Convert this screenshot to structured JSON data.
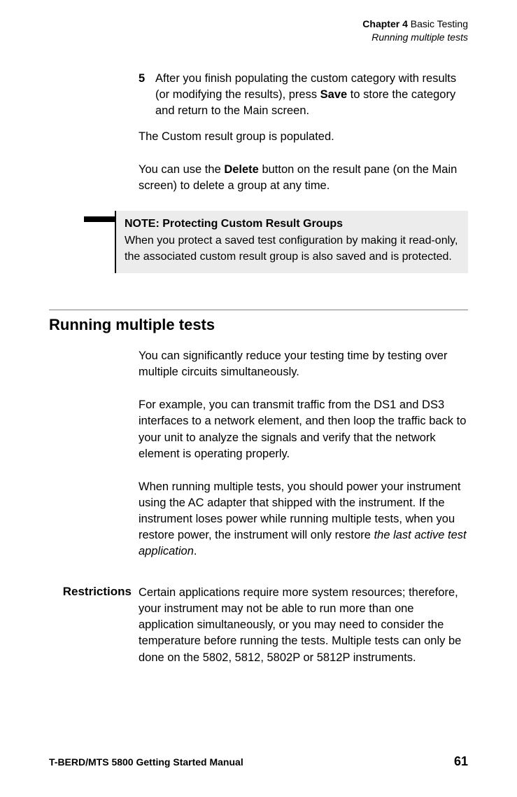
{
  "header": {
    "chapter_label": "Chapter 4",
    "chapter_title": "  Basic Testing",
    "section_title": "Running multiple tests"
  },
  "step": {
    "number": "5",
    "text_before_bold": "After you finish populating the custom category with results (or modifying the results), press ",
    "bold_word": "Save",
    "text_after_bold": " to store the category and return to the Main screen."
  },
  "para_populated": "The Custom result group is populated.",
  "para_delete_before": "You can use the ",
  "para_delete_bold": "Delete",
  "para_delete_after": " button on the result pane (on the Main screen) to delete a group at any time.",
  "note": {
    "title": "NOTE: Protecting Custom Result Groups",
    "body": "When you protect a saved test configuration by making it read-only, the associated custom result group is also saved and is protected."
  },
  "section_heading": "Running multiple tests",
  "sec_para1": "You can significantly reduce your testing time by testing over multiple circuits simultaneously.",
  "sec_para2": "For example, you can transmit traffic from the DS1 and DS3 interfaces to a network element, and then loop the traffic back to your unit to analyze the signals and verify that the network element is operating properly.",
  "sec_para3_before": "When running multiple tests, you should power your instru­ment using the AC adapter that shipped with the instrument. If the instrument loses power while running multiple tests, when you restore power, the instrument will only restore ",
  "sec_para3_italic": "the last active test application",
  "sec_para3_after": ".",
  "restrictions": {
    "label": "Restrictions",
    "body": "Certain applications require more system resources; there­fore, your instrument may not be able to run more than one application simultaneously, or you may need to consider the temperature before running the tests. Multiple tests can only be done on the 5802, 5812, 5802P or 5812P instruments."
  },
  "footer": {
    "manual_title": "T-BERD/MTS 5800 Getting Started Manual",
    "page_number": "61"
  }
}
